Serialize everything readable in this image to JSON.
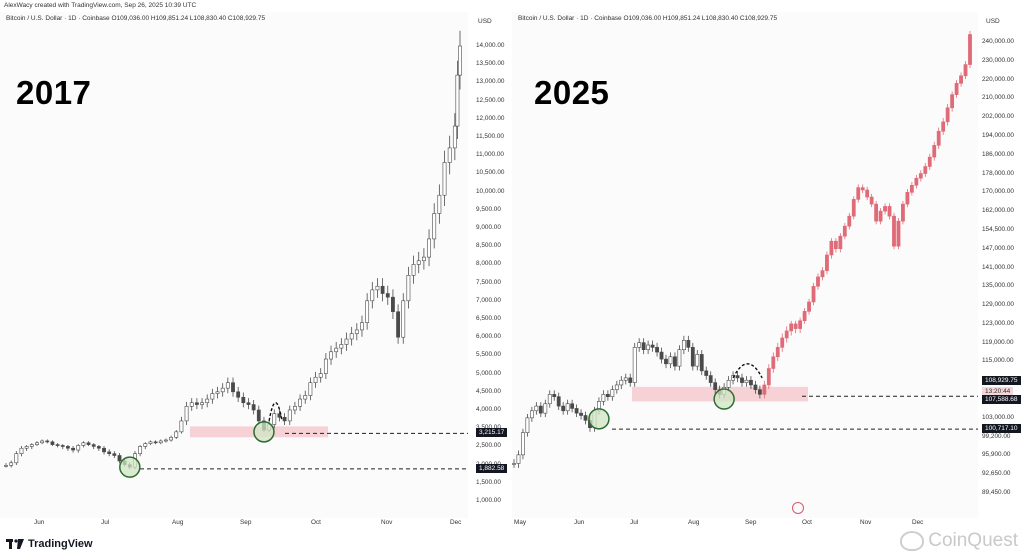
{
  "header": {
    "credit": "AlexWacy created with TradingView.com, Sep 26, 2025 10:39 UTC"
  },
  "chart_data": [
    {
      "type": "candlestick",
      "legend": "Bitcoin / U.S. Dollar · 1D · Coinbase  O109,036.00  H109,851.24  L108,830.40  C108,929.75",
      "year_label": "2017",
      "currency": "USD",
      "y_ticks": [
        "1,000.00",
        "1,500.00",
        "2,000.00",
        "2,500.00",
        "3,500.00",
        "4,000.00",
        "4,500.00",
        "5,000.00",
        "5,500.00",
        "6,000.00",
        "6,500.00",
        "7,000.00",
        "7,500.00",
        "8,000.00",
        "8,500.00",
        "9,000.00",
        "9,500.00",
        "10,000.00",
        "10,500.00",
        "11,000.00",
        "11,500.00",
        "12,000.00",
        "12,500.00",
        "13,000.00",
        "13,500.00",
        "14,000.00"
      ],
      "x_ticks": [
        "Jun",
        "Jul",
        "Aug",
        "Sep",
        "Oct",
        "Nov",
        "Dec"
      ],
      "price_tags": [
        {
          "label": "3,215.17",
          "value": 3215.17
        },
        {
          "label": "1,882.58",
          "value": 1882.58
        }
      ],
      "support_zone": {
        "low": 3000,
        "high": 3550
      },
      "dashed_levels": [
        3215.17,
        1882.58
      ],
      "markers": [
        "circle-low-jul",
        "circle-low-sep",
        "arc-pattern-sep"
      ],
      "series_path": [
        [
          0,
          1980
        ],
        [
          4,
          2050
        ],
        [
          8,
          2300
        ],
        [
          12,
          2450
        ],
        [
          16,
          2500
        ],
        [
          20,
          2600
        ],
        [
          24,
          2700
        ],
        [
          28,
          2800
        ],
        [
          32,
          2750
        ],
        [
          36,
          2600
        ],
        [
          40,
          2550
        ],
        [
          44,
          2500
        ],
        [
          48,
          2450
        ],
        [
          52,
          2400
        ],
        [
          56,
          2550
        ],
        [
          60,
          2700
        ],
        [
          64,
          2600
        ],
        [
          68,
          2500
        ],
        [
          72,
          2450
        ],
        [
          76,
          2350
        ],
        [
          80,
          2300
        ],
        [
          84,
          2250
        ],
        [
          88,
          2100
        ],
        [
          92,
          2000
        ],
        [
          96,
          1930
        ],
        [
          100,
          2300
        ],
        [
          104,
          2500
        ],
        [
          108,
          2650
        ],
        [
          112,
          2750
        ],
        [
          116,
          2700
        ],
        [
          120,
          2800
        ],
        [
          124,
          2850
        ],
        [
          128,
          3000
        ],
        [
          132,
          3300
        ],
        [
          136,
          3700
        ],
        [
          140,
          4100
        ],
        [
          144,
          4200
        ],
        [
          148,
          4150
        ],
        [
          152,
          4200
        ],
        [
          156,
          4300
        ],
        [
          160,
          4450
        ],
        [
          164,
          4500
        ],
        [
          168,
          4600
        ],
        [
          172,
          4750
        ],
        [
          176,
          4500
        ],
        [
          180,
          4350
        ],
        [
          184,
          4200
        ],
        [
          188,
          4150
        ],
        [
          192,
          4000
        ],
        [
          196,
          3700
        ],
        [
          200,
          3400
        ],
        [
          204,
          3600
        ],
        [
          208,
          3900
        ],
        [
          212,
          3800
        ],
        [
          216,
          3700
        ],
        [
          220,
          4000
        ],
        [
          224,
          4100
        ],
        [
          228,
          4300
        ],
        [
          232,
          4400
        ],
        [
          236,
          4750
        ],
        [
          240,
          4900
        ],
        [
          244,
          5000
        ],
        [
          248,
          5400
        ],
        [
          252,
          5600
        ],
        [
          256,
          5700
        ],
        [
          260,
          5800
        ],
        [
          264,
          5950
        ],
        [
          268,
          6100
        ],
        [
          272,
          6200
        ],
        [
          276,
          6400
        ],
        [
          280,
          7000
        ],
        [
          284,
          7300
        ],
        [
          288,
          7400
        ],
        [
          292,
          7200
        ],
        [
          296,
          7100
        ],
        [
          300,
          6700
        ],
        [
          304,
          6000
        ],
        [
          308,
          7000
        ],
        [
          312,
          7700
        ],
        [
          316,
          8000
        ],
        [
          320,
          8100
        ],
        [
          324,
          8200
        ],
        [
          328,
          8700
        ],
        [
          332,
          9400
        ],
        [
          336,
          9900
        ],
        [
          340,
          10800
        ],
        [
          344,
          11200
        ],
        [
          348,
          11800
        ],
        [
          350,
          13200
        ],
        [
          352,
          14000
        ]
      ]
    },
    {
      "type": "candlestick",
      "legend": "Bitcoin / U.S. Dollar · 1D · Coinbase  O109,036.00  H109,851.24  L108,830.40  C108,929.75",
      "year_label": "2025",
      "currency": "USD",
      "y_ticks": [
        "89,450.00",
        "92,650.00",
        "95,900.00",
        "99,200.00",
        "103,000.00",
        "107,000.00",
        "111,000.00",
        "115,000.00",
        "119,000.00",
        "123,000.00",
        "129,000.00",
        "135,000.00",
        "141,000.00",
        "147,000.00",
        "154,500.00",
        "162,000.00",
        "170,000.00",
        "178,000.00",
        "186,000.00",
        "194,000.00",
        "202,000.00",
        "210,000.00",
        "220,000.00",
        "230,000.00",
        "240,000.00"
      ],
      "x_ticks": [
        "May",
        "Jun",
        "Jul",
        "Aug",
        "Sep",
        "Oct",
        "Nov",
        "Dec"
      ],
      "price_tags": [
        {
          "label": "108,929.75",
          "value": 108929.75
        },
        {
          "label": "13:20:44",
          "value": 107800
        },
        {
          "label": "107,588.68",
          "value": 107588.68
        },
        {
          "label": "100,717.10",
          "value": 100717.1
        }
      ],
      "support_zone": {
        "low": 106500,
        "high": 109600
      },
      "dashed_levels": [
        107588.68,
        100717.1
      ],
      "markers": [
        "circle-low-jun",
        "circle-low-sep",
        "arc-pattern-sep"
      ],
      "series_path": [
        [
          0,
          94500
        ],
        [
          4,
          96000
        ],
        [
          8,
          100000
        ],
        [
          12,
          103000
        ],
        [
          16,
          104500
        ],
        [
          20,
          105500
        ],
        [
          24,
          104000
        ],
        [
          28,
          106000
        ],
        [
          32,
          108000
        ],
        [
          36,
          107500
        ],
        [
          40,
          105500
        ],
        [
          44,
          104500
        ],
        [
          48,
          106000
        ],
        [
          52,
          105000
        ],
        [
          56,
          104000
        ],
        [
          60,
          103500
        ],
        [
          64,
          102500
        ],
        [
          68,
          101000
        ],
        [
          72,
          104500
        ],
        [
          76,
          106500
        ],
        [
          80,
          108000
        ],
        [
          84,
          107500
        ],
        [
          88,
          109000
        ],
        [
          92,
          110000
        ],
        [
          96,
          111000
        ],
        [
          100,
          111500
        ],
        [
          104,
          110500
        ],
        [
          108,
          118000
        ],
        [
          112,
          119000
        ],
        [
          116,
          117500
        ],
        [
          120,
          118500
        ],
        [
          124,
          118000
        ],
        [
          128,
          117000
        ],
        [
          132,
          115500
        ],
        [
          136,
          114500
        ],
        [
          140,
          116000
        ],
        [
          144,
          114000
        ],
        [
          148,
          117500
        ],
        [
          152,
          119500
        ],
        [
          156,
          118000
        ],
        [
          160,
          114000
        ],
        [
          164,
          116500
        ],
        [
          168,
          113000
        ],
        [
          172,
          112000
        ],
        [
          176,
          110500
        ],
        [
          180,
          109000
        ],
        [
          184,
          108000
        ],
        [
          188,
          109500
        ],
        [
          192,
          111000
        ],
        [
          196,
          112000
        ],
        [
          200,
          111500
        ],
        [
          204,
          110500
        ],
        [
          208,
          111000
        ],
        [
          212,
          110000
        ],
        [
          216,
          109000
        ],
        [
          220,
          108000
        ],
        [
          224,
          110000
        ],
        [
          228,
          113500
        ],
        [
          232,
          116000
        ],
        [
          236,
          118000
        ],
        [
          240,
          120000
        ],
        [
          244,
          121500
        ],
        [
          248,
          123000
        ],
        [
          252,
          122000
        ],
        [
          256,
          124000
        ],
        [
          260,
          127000
        ],
        [
          264,
          130000
        ],
        [
          268,
          135000
        ],
        [
          272,
          138000
        ],
        [
          276,
          140000
        ],
        [
          280,
          145000
        ],
        [
          284,
          150000
        ],
        [
          288,
          147000
        ],
        [
          292,
          152000
        ],
        [
          296,
          156000
        ],
        [
          300,
          160000
        ],
        [
          304,
          167000
        ],
        [
          308,
          172000
        ],
        [
          312,
          171000
        ],
        [
          316,
          168000
        ],
        [
          320,
          165000
        ],
        [
          324,
          158000
        ],
        [
          328,
          162000
        ],
        [
          332,
          164000
        ],
        [
          336,
          160000
        ],
        [
          340,
          148000
        ],
        [
          344,
          158000
        ],
        [
          348,
          165000
        ],
        [
          352,
          170000
        ],
        [
          356,
          173000
        ],
        [
          360,
          176000
        ],
        [
          364,
          178000
        ],
        [
          368,
          181000
        ],
        [
          372,
          185000
        ],
        [
          376,
          190000
        ],
        [
          380,
          196000
        ],
        [
          384,
          200000
        ],
        [
          388,
          206000
        ],
        [
          392,
          212000
        ],
        [
          396,
          218000
        ],
        [
          400,
          222000
        ],
        [
          404,
          228000
        ],
        [
          408,
          244000
        ]
      ]
    }
  ],
  "footer": {
    "brand": "TradingView",
    "watermark": "CoinQuest"
  },
  "colors": {
    "up": "#b7b7b7",
    "down": "#4a4a4a",
    "projection": "#e06b78",
    "zone": "#f6d2d6",
    "marker": "#2e6b2e",
    "marker_fill": "#cfe6c4"
  }
}
